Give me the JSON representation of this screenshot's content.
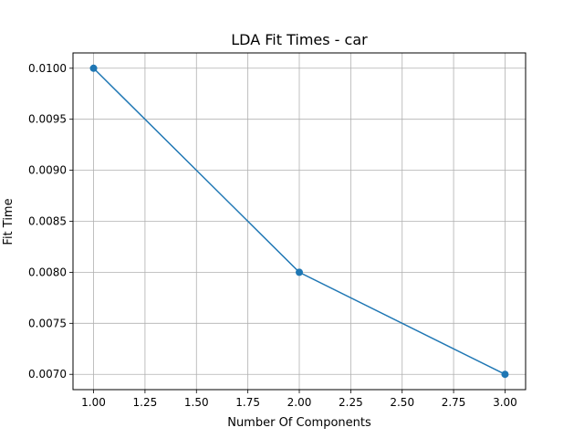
{
  "chart_data": {
    "type": "line",
    "title": "LDA Fit Times - car",
    "xlabel": "Number Of Components",
    "ylabel": "Fit Time",
    "x": [
      1.0,
      2.0,
      3.0
    ],
    "series": [
      {
        "values": [
          0.01,
          0.008,
          0.007
        ],
        "color": "#1f77b4",
        "marker": "circle"
      }
    ],
    "xlim": [
      0.9,
      3.1
    ],
    "ylim": [
      0.00685,
      0.01015
    ],
    "xticks": [
      1.0,
      1.25,
      1.5,
      1.75,
      2.0,
      2.25,
      2.5,
      2.75,
      3.0
    ],
    "xtick_labels": [
      "1.00",
      "1.25",
      "1.50",
      "1.75",
      "2.00",
      "2.25",
      "2.50",
      "2.75",
      "3.00"
    ],
    "yticks": [
      0.007,
      0.0075,
      0.008,
      0.0085,
      0.009,
      0.0095,
      0.01
    ],
    "ytick_labels": [
      "0.0070",
      "0.0075",
      "0.0080",
      "0.0085",
      "0.0090",
      "0.0095",
      "0.0100"
    ],
    "grid": true,
    "legend": false
  }
}
